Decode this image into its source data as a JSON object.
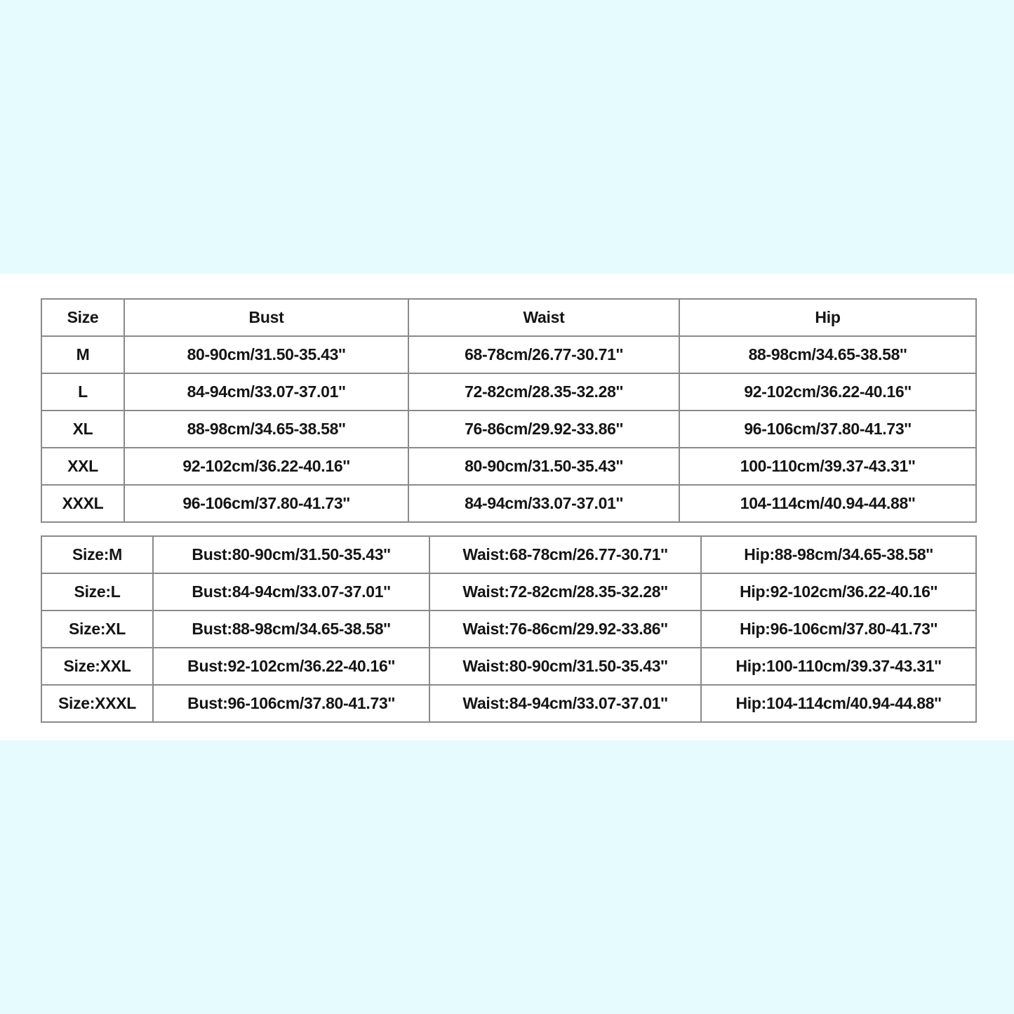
{
  "table1": {
    "headers": [
      "Size",
      "Bust",
      "Waist",
      "Hip"
    ],
    "rows": [
      [
        "M",
        "80-90cm/31.50-35.43''",
        "68-78cm/26.77-30.71''",
        "88-98cm/34.65-38.58''"
      ],
      [
        "L",
        "84-94cm/33.07-37.01''",
        "72-82cm/28.35-32.28''",
        "92-102cm/36.22-40.16''"
      ],
      [
        "XL",
        "88-98cm/34.65-38.58''",
        "76-86cm/29.92-33.86''",
        "96-106cm/37.80-41.73''"
      ],
      [
        "XXL",
        "92-102cm/36.22-40.16''",
        "80-90cm/31.50-35.43''",
        "100-110cm/39.37-43.31''"
      ],
      [
        "XXXL",
        "96-106cm/37.80-41.73''",
        "84-94cm/33.07-37.01''",
        "104-114cm/40.94-44.88''"
      ]
    ]
  },
  "table2": {
    "rows": [
      [
        "Size:M",
        "Bust:80-90cm/31.50-35.43''",
        "Waist:68-78cm/26.77-30.71''",
        "Hip:88-98cm/34.65-38.58''"
      ],
      [
        "Size:L",
        "Bust:84-94cm/33.07-37.01''",
        "Waist:72-82cm/28.35-32.28''",
        "Hip:92-102cm/36.22-40.16''"
      ],
      [
        "Size:XL",
        "Bust:88-98cm/34.65-38.58''",
        "Waist:76-86cm/29.92-33.86''",
        "Hip:96-106cm/37.80-41.73''"
      ],
      [
        "Size:XXL",
        "Bust:92-102cm/36.22-40.16''",
        "Waist:80-90cm/31.50-35.43''",
        "Hip:100-110cm/39.37-43.31''"
      ],
      [
        "Size:XXXL",
        "Bust:96-106cm/37.80-41.73''",
        "Waist:84-94cm/33.07-37.01''",
        "Hip:104-114cm/40.94-44.88''"
      ]
    ]
  },
  "colors": {
    "background": "#e6fbfe",
    "panel": "#ffffff",
    "border": "#8a8a8a",
    "text": "#151515"
  }
}
